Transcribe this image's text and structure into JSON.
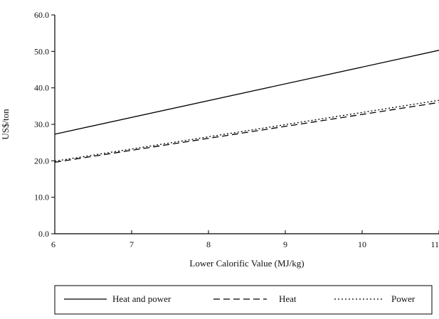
{
  "chart_data": {
    "type": "line",
    "title": "",
    "xlabel": "Lower Calorific Value (MJ/kg)",
    "ylabel": "US$/ton",
    "xlim": [
      6,
      11
    ],
    "ylim": [
      0,
      60
    ],
    "x_ticks": [
      6,
      7,
      8,
      9,
      10,
      11
    ],
    "x_tick_labels": [
      "6",
      "7",
      "8",
      "9",
      "10",
      "11"
    ],
    "y_ticks": [
      0,
      10,
      20,
      30,
      40,
      50,
      60
    ],
    "y_tick_labels": [
      "0.0",
      "10.0",
      "20.0",
      "30.0",
      "40.0",
      "50.0",
      "60.0"
    ],
    "grid": false,
    "legend_position": "bottom",
    "series": [
      {
        "name": "Heat and power",
        "style": "solid",
        "x": [
          6,
          11
        ],
        "y": [
          27.3,
          50.3
        ]
      },
      {
        "name": "Heat",
        "style": "dashed",
        "x": [
          6,
          11
        ],
        "y": [
          19.6,
          36.0
        ]
      },
      {
        "name": "Power",
        "style": "dotted",
        "x": [
          6,
          11
        ],
        "y": [
          19.9,
          36.6
        ]
      }
    ]
  }
}
